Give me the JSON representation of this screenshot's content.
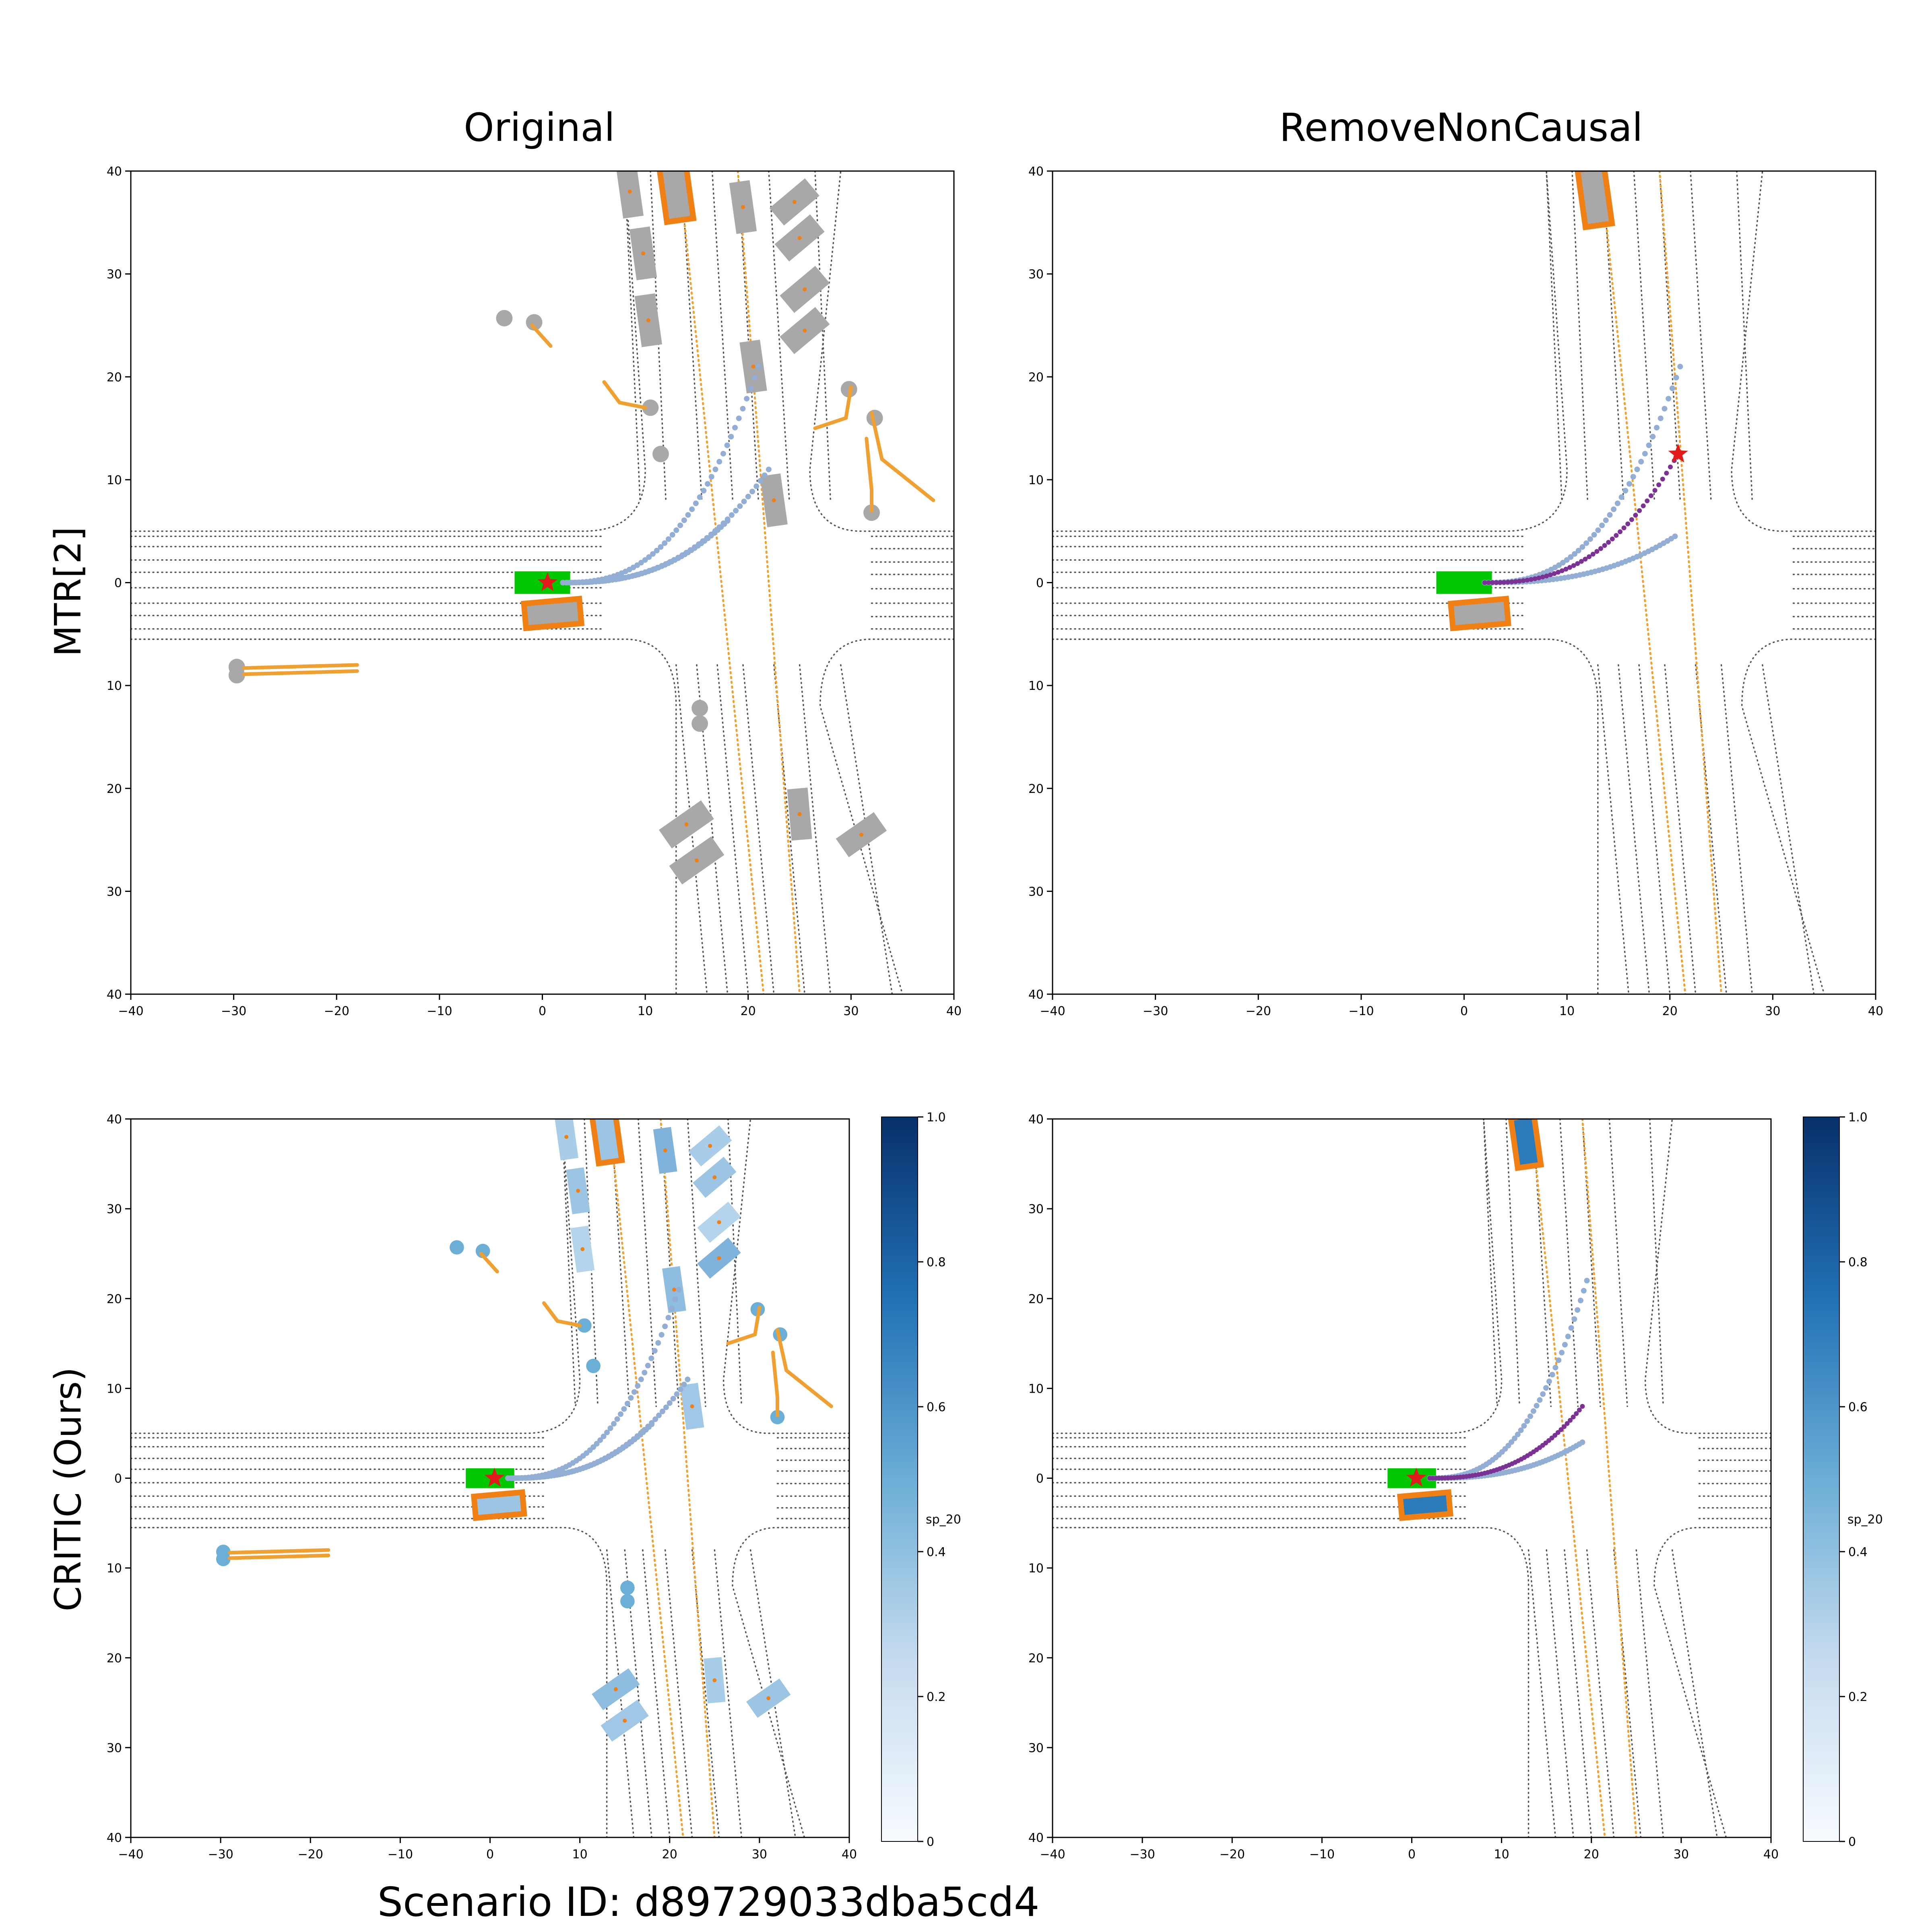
{
  "column_titles": [
    "Original",
    "RemoveNonCausal"
  ],
  "row_labels": [
    "MTR[2]",
    "CRITIC (Ours)"
  ],
  "footer": "Scenario ID: d89729033dba5cd4",
  "colorbar": {
    "label": "sp_20",
    "ticks": [
      "0",
      "0.2",
      "0.4",
      "0.6",
      "0.8",
      "1.0"
    ],
    "cmap_low": "#f7fbff",
    "cmap_high": "#08306b"
  },
  "colors": {
    "ego": "#00c800",
    "causal_outline": "#f07f14",
    "agent_gray": "#a8a8a8",
    "trajectory": "#93aed4",
    "selected_trajectory": "#7b3294",
    "goal_star": "#e31a1c",
    "future_path": "#f0a030",
    "road": "#555555"
  },
  "chart_data": [
    {
      "type": "scatter",
      "panel": "MTR[2] / Original",
      "x_ticks": [
        "−40",
        "−30",
        "−20",
        "−10",
        "0",
        "10",
        "20",
        "30",
        "40"
      ],
      "y_ticks": [
        "40",
        "30",
        "20",
        "10",
        "0",
        "10",
        "20",
        "30",
        "40"
      ],
      "xlim": [
        -40,
        40
      ],
      "ylim": [
        -40,
        40
      ],
      "ego": {
        "x": 0,
        "y": 0
      },
      "causal_agents": [
        {
          "x": 12.7,
          "y": 37.5
        },
        {
          "x": 1,
          "y": -3
        }
      ]
    },
    {
      "type": "scatter",
      "panel": "MTR[2] / RemoveNonCausal",
      "x_ticks": [
        "−40",
        "−30",
        "−20",
        "−10",
        "0",
        "10",
        "20",
        "30",
        "40"
      ],
      "y_ticks": [
        "40",
        "30",
        "20",
        "10",
        "0",
        "10",
        "20",
        "30",
        "40"
      ],
      "xlim": [
        -40,
        40
      ],
      "ylim": [
        -40,
        40
      ],
      "ego": {
        "x": 0,
        "y": 0
      },
      "goal": {
        "x": 20.8,
        "y": 12.5
      }
    },
    {
      "type": "scatter",
      "panel": "CRITIC (Ours) / Original",
      "x_ticks": [
        "−40",
        "−30",
        "−20",
        "−10",
        "0",
        "10",
        "20",
        "30",
        "40"
      ],
      "y_ticks": [
        "40",
        "30",
        "20",
        "10",
        "0",
        "10",
        "20",
        "30",
        "40"
      ],
      "xlim": [
        -40,
        40
      ],
      "ylim": [
        -40,
        40
      ],
      "ego": {
        "x": 0,
        "y": 0
      }
    },
    {
      "type": "scatter",
      "panel": "CRITIC (Ours) / RemoveNonCausal",
      "x_ticks": [
        "−40",
        "−30",
        "−20",
        "−10",
        "0",
        "10",
        "20",
        "30",
        "40"
      ],
      "y_ticks": [
        "40",
        "30",
        "20",
        "10",
        "0",
        "10",
        "20",
        "30",
        "40"
      ],
      "xlim": [
        -40,
        40
      ],
      "ylim": [
        -40,
        40
      ],
      "ego": {
        "x": 0,
        "y": 0
      }
    }
  ]
}
